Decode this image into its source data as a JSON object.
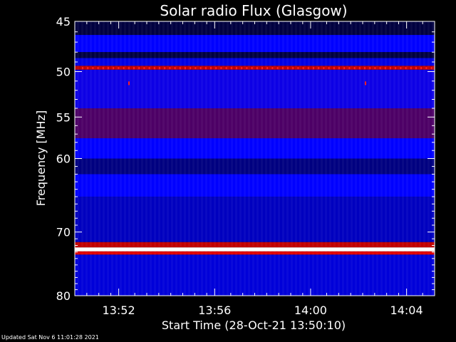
{
  "chart_data": {
    "type": "heatmap",
    "title": "Solar radio Flux (Glasgow)",
    "ylabel": "Frequency [MHz]",
    "xlabel": "Start Time (28-Oct-21 13:50:10)",
    "y_scale": "log",
    "ylim": [
      80,
      45
    ],
    "y_ticks": [
      45,
      50,
      55,
      60,
      70,
      80
    ],
    "x_ticks": [
      "13:52",
      "13:56",
      "14:00",
      "14:04"
    ],
    "x_tick_minutes": [
      1.83,
      5.83,
      9.83,
      13.83
    ],
    "x_range_minutes": [
      0,
      15
    ],
    "colormap": [
      "#000000",
      "#0000ff",
      "#800000",
      "#ff0000",
      "#ffff00",
      "#ffffff"
    ],
    "bands": [
      {
        "from": 45,
        "to": 46.3,
        "level": 0.05
      },
      {
        "from": 46.3,
        "to": 48,
        "level": 0.2
      },
      {
        "from": 48,
        "to": 48.6,
        "level": 0.05
      },
      {
        "from": 48.6,
        "to": 49.4,
        "level": 0.18
      },
      {
        "from": 49.4,
        "to": 49.8,
        "level": 0.5
      },
      {
        "from": 49.8,
        "to": 54,
        "level": 0.22
      },
      {
        "from": 54,
        "to": 57.5,
        "level": 0.32
      },
      {
        "from": 57.5,
        "to": 60,
        "level": 0.2
      },
      {
        "from": 60,
        "to": 62,
        "level": 0.1
      },
      {
        "from": 62,
        "to": 65,
        "level": 0.2
      },
      {
        "from": 65,
        "to": 71.5,
        "level": 0.15
      },
      {
        "from": 71.5,
        "to": 72.3,
        "level": 0.5
      },
      {
        "from": 72.3,
        "to": 72.9,
        "level": 1.0
      },
      {
        "from": 72.9,
        "to": 73.4,
        "level": 0.55
      },
      {
        "from": 73.4,
        "to": 80,
        "level": 0.17
      }
    ]
  },
  "footer": {
    "updated": "Updated Sat Nov  6 11:01:28 2021"
  }
}
